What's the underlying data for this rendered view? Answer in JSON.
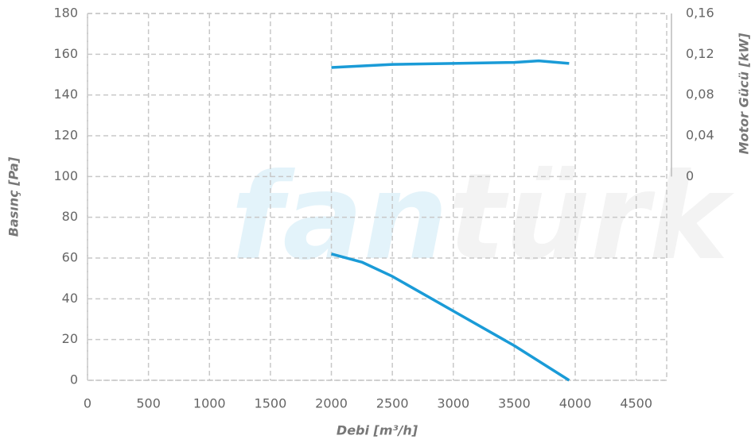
{
  "chart_data": {
    "type": "line",
    "xlabel": "Debi [m³/h]",
    "ylabel": "Basınç [Pa]",
    "y2label": "Motor Gücü [kW]",
    "watermark": [
      "fan",
      "türk"
    ],
    "xlim": [
      0,
      4750
    ],
    "xticks": [
      0,
      500,
      1000,
      1500,
      2000,
      2500,
      3000,
      3500,
      4000,
      4500
    ],
    "ylim": [
      0,
      180
    ],
    "yticks": [
      0,
      20,
      40,
      60,
      80,
      100,
      120,
      140,
      160,
      180
    ],
    "y2lim": [
      0,
      0.16
    ],
    "y2ticks": [
      0,
      {
        "value": 0.04,
        "label": "0,04"
      },
      {
        "value": 0.08,
        "label": "0,08"
      },
      {
        "value": 0.12,
        "label": "0,12"
      },
      {
        "value": 0.16,
        "label": "0,16"
      }
    ],
    "grid": true,
    "series": [
      {
        "color": "#1a9bd7",
        "x": [
          2000,
          2250,
          2500,
          3000,
          3500,
          3950
        ],
        "values": [
          62,
          58,
          51,
          34,
          17,
          0
        ]
      },
      {
        "color": "#1a9bd7",
        "axis": "y2",
        "x": [
          2000,
          2500,
          3000,
          3500,
          3700,
          3950
        ],
        "values": [
          0.107,
          0.11,
          0.111,
          0.112,
          0.1135,
          0.111
        ]
      }
    ]
  }
}
